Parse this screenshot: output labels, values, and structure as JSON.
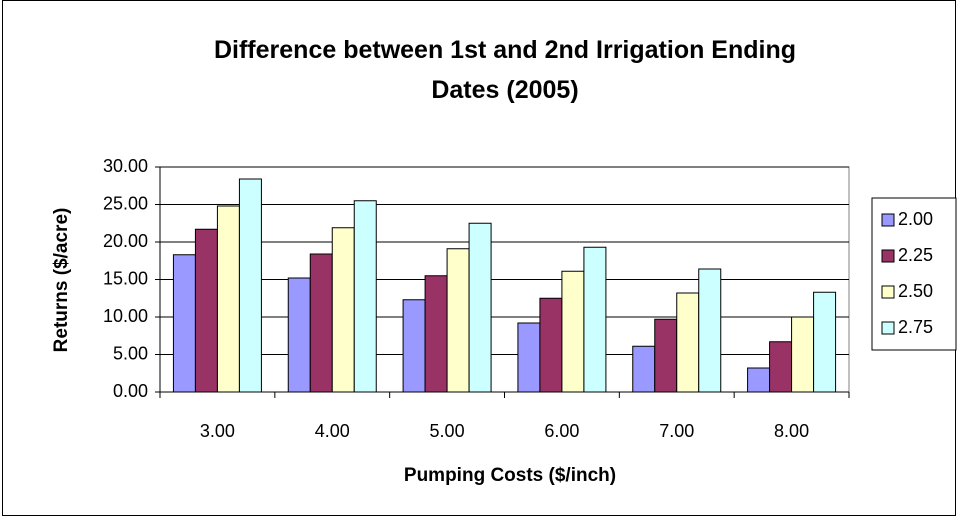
{
  "chart_data": {
    "type": "bar",
    "title": "Difference between 1st and 2nd Irrigation Ending Dates (2005)",
    "x_label": "Pumping Costs ($/inch)",
    "y_label": "Returns ($/acre)",
    "categories": [
      "3.00",
      "4.00",
      "5.00",
      "6.00",
      "7.00",
      "8.00"
    ],
    "series": [
      {
        "name": "2.00",
        "color": "#9999ff",
        "values": [
          18.3,
          15.2,
          12.3,
          9.2,
          6.1,
          3.2
        ]
      },
      {
        "name": "2.25",
        "color": "#993366",
        "values": [
          21.7,
          18.4,
          15.5,
          12.5,
          9.7,
          6.7
        ]
      },
      {
        "name": "2.50",
        "color": "#ffffcc",
        "values": [
          24.8,
          21.9,
          19.1,
          16.1,
          13.2,
          10.0
        ]
      },
      {
        "name": "2.75",
        "color": "#ccffff",
        "values": [
          28.4,
          25.5,
          22.5,
          19.3,
          16.4,
          13.3
        ]
      }
    ],
    "ylim": [
      0,
      30
    ],
    "yticks": [
      {
        "value": 0,
        "label": "0.00"
      },
      {
        "value": 5,
        "label": "5.00"
      },
      {
        "value": 10,
        "label": "10.00"
      },
      {
        "value": 15,
        "label": "15.00"
      },
      {
        "value": 20,
        "label": "20.00"
      },
      {
        "value": 25,
        "label": "25.00"
      },
      {
        "value": 30,
        "label": "30.00"
      }
    ],
    "grid": true,
    "legend": "right"
  }
}
